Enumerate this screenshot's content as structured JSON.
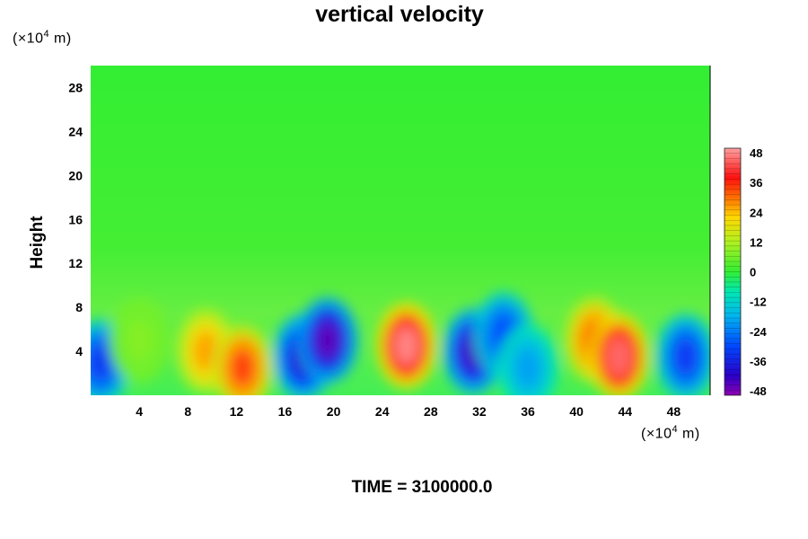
{
  "chart_data": {
    "type": "heatmap",
    "title": "vertical velocity",
    "ylabel": "Height",
    "xunit": {
      "prefix": "(×10",
      "exp": "4",
      "suffix": " m)"
    },
    "yunit": {
      "prefix": "(×10",
      "exp": "4",
      "suffix": " m)"
    },
    "x_ticks": [
      "4",
      "8",
      "12",
      "16",
      "20",
      "24",
      "28",
      "32",
      "36",
      "40",
      "44",
      "48"
    ],
    "y_ticks": [
      "28",
      "24",
      "20",
      "16",
      "12",
      "8",
      "4"
    ],
    "xlim": [
      0,
      51
    ],
    "ylim": [
      0,
      30
    ],
    "colorbar": {
      "ticks": [
        "48",
        "36",
        "24",
        "12",
        "0",
        "-12",
        "-24",
        "-36",
        "-48"
      ],
      "range": [
        -48,
        48
      ]
    },
    "cells": [
      {
        "x": 0.8,
        "y": 3,
        "value": -32
      },
      {
        "x": 4,
        "y": 5,
        "value": 8
      },
      {
        "x": 9.5,
        "y": 4,
        "value": 26
      },
      {
        "x": 12.5,
        "y": 2.5,
        "value": 34
      },
      {
        "x": 17.5,
        "y": 3.5,
        "value": -40
      },
      {
        "x": 19.5,
        "y": 5,
        "value": -44
      },
      {
        "x": 26,
        "y": 4.5,
        "value": 46
      },
      {
        "x": 31.5,
        "y": 4,
        "value": -42
      },
      {
        "x": 34,
        "y": 5.5,
        "value": -30
      },
      {
        "x": 36,
        "y": 2.5,
        "value": -20
      },
      {
        "x": 41.5,
        "y": 5,
        "value": 32
      },
      {
        "x": 43.5,
        "y": 3.5,
        "value": 44
      },
      {
        "x": 49,
        "y": 3.5,
        "value": -32
      }
    ]
  },
  "time_label": "TIME = 3100000.0"
}
